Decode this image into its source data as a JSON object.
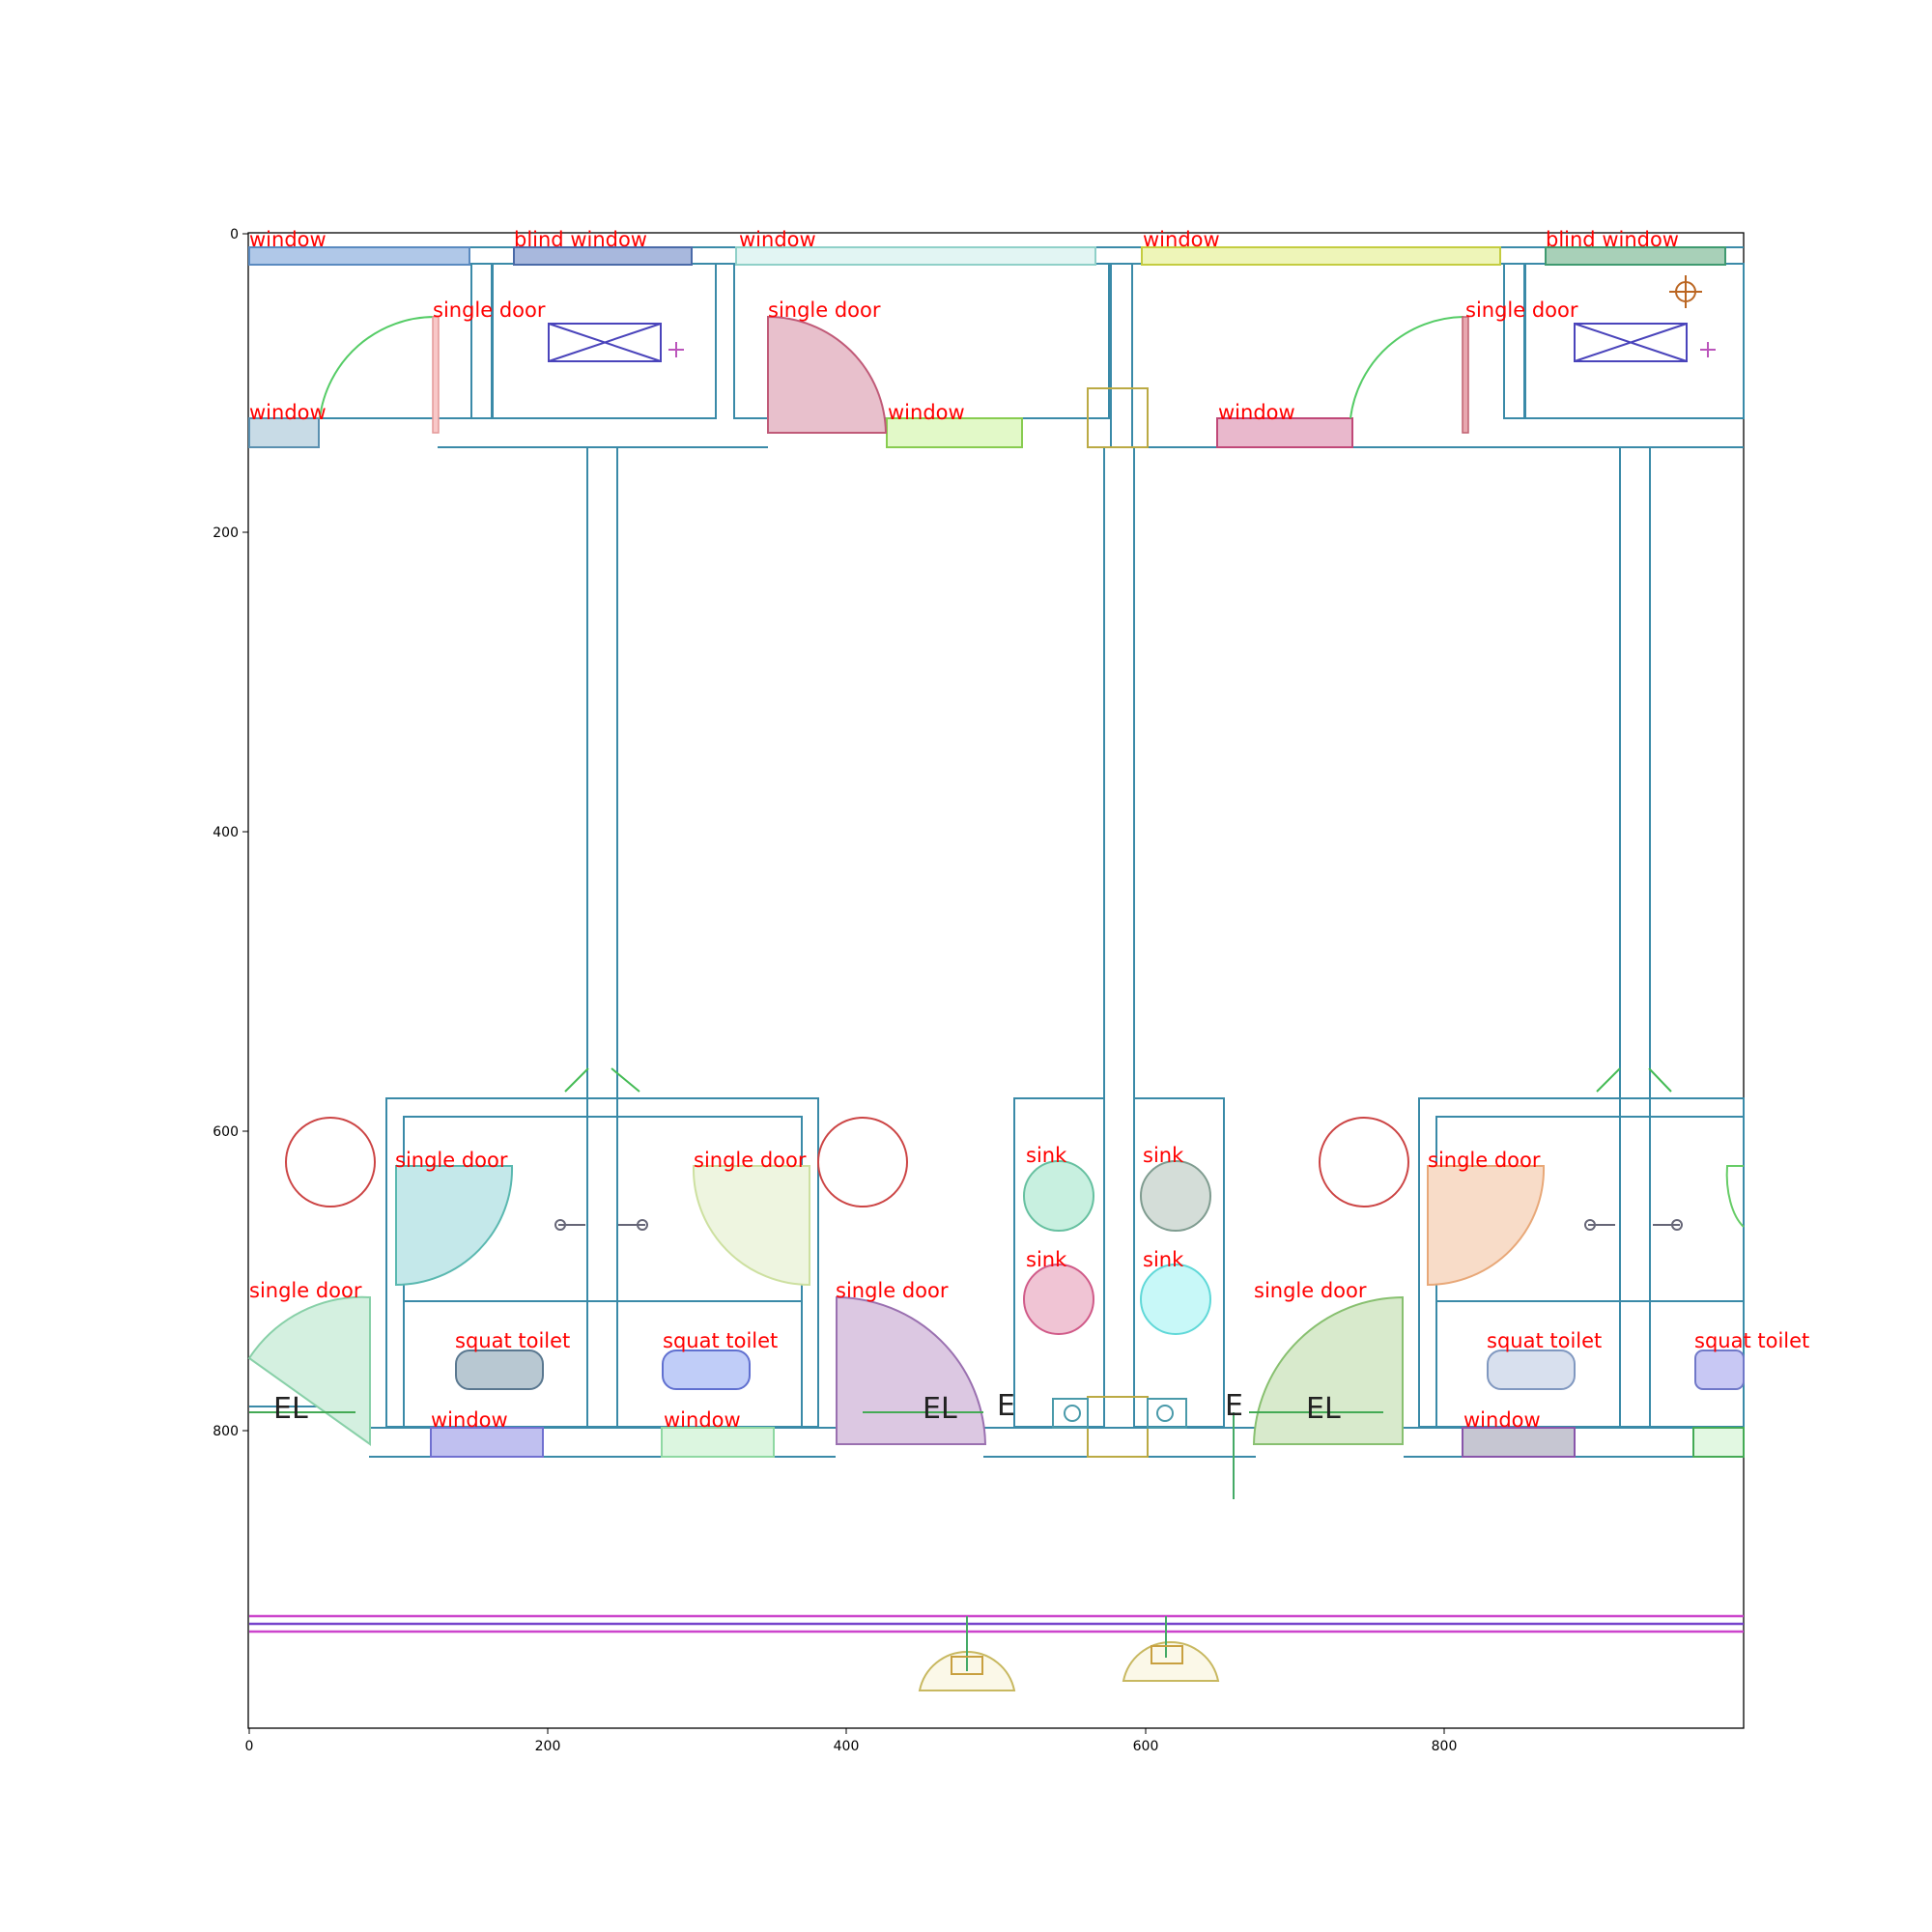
{
  "axes": {
    "x_ticks": [
      "0",
      "200",
      "400",
      "600",
      "800"
    ],
    "y_ticks": [
      "0",
      "200",
      "400",
      "600",
      "800"
    ]
  },
  "labels": {
    "window": "window",
    "blind_window": "blind window",
    "single_door": "single door",
    "sink": "sink",
    "squat_toilet": "squat toilet"
  },
  "markers": {
    "el": "EL",
    "e": "E"
  },
  "colors": {
    "label": "#ff0000",
    "wall": "#3a8aa8",
    "frame": "#000000"
  }
}
